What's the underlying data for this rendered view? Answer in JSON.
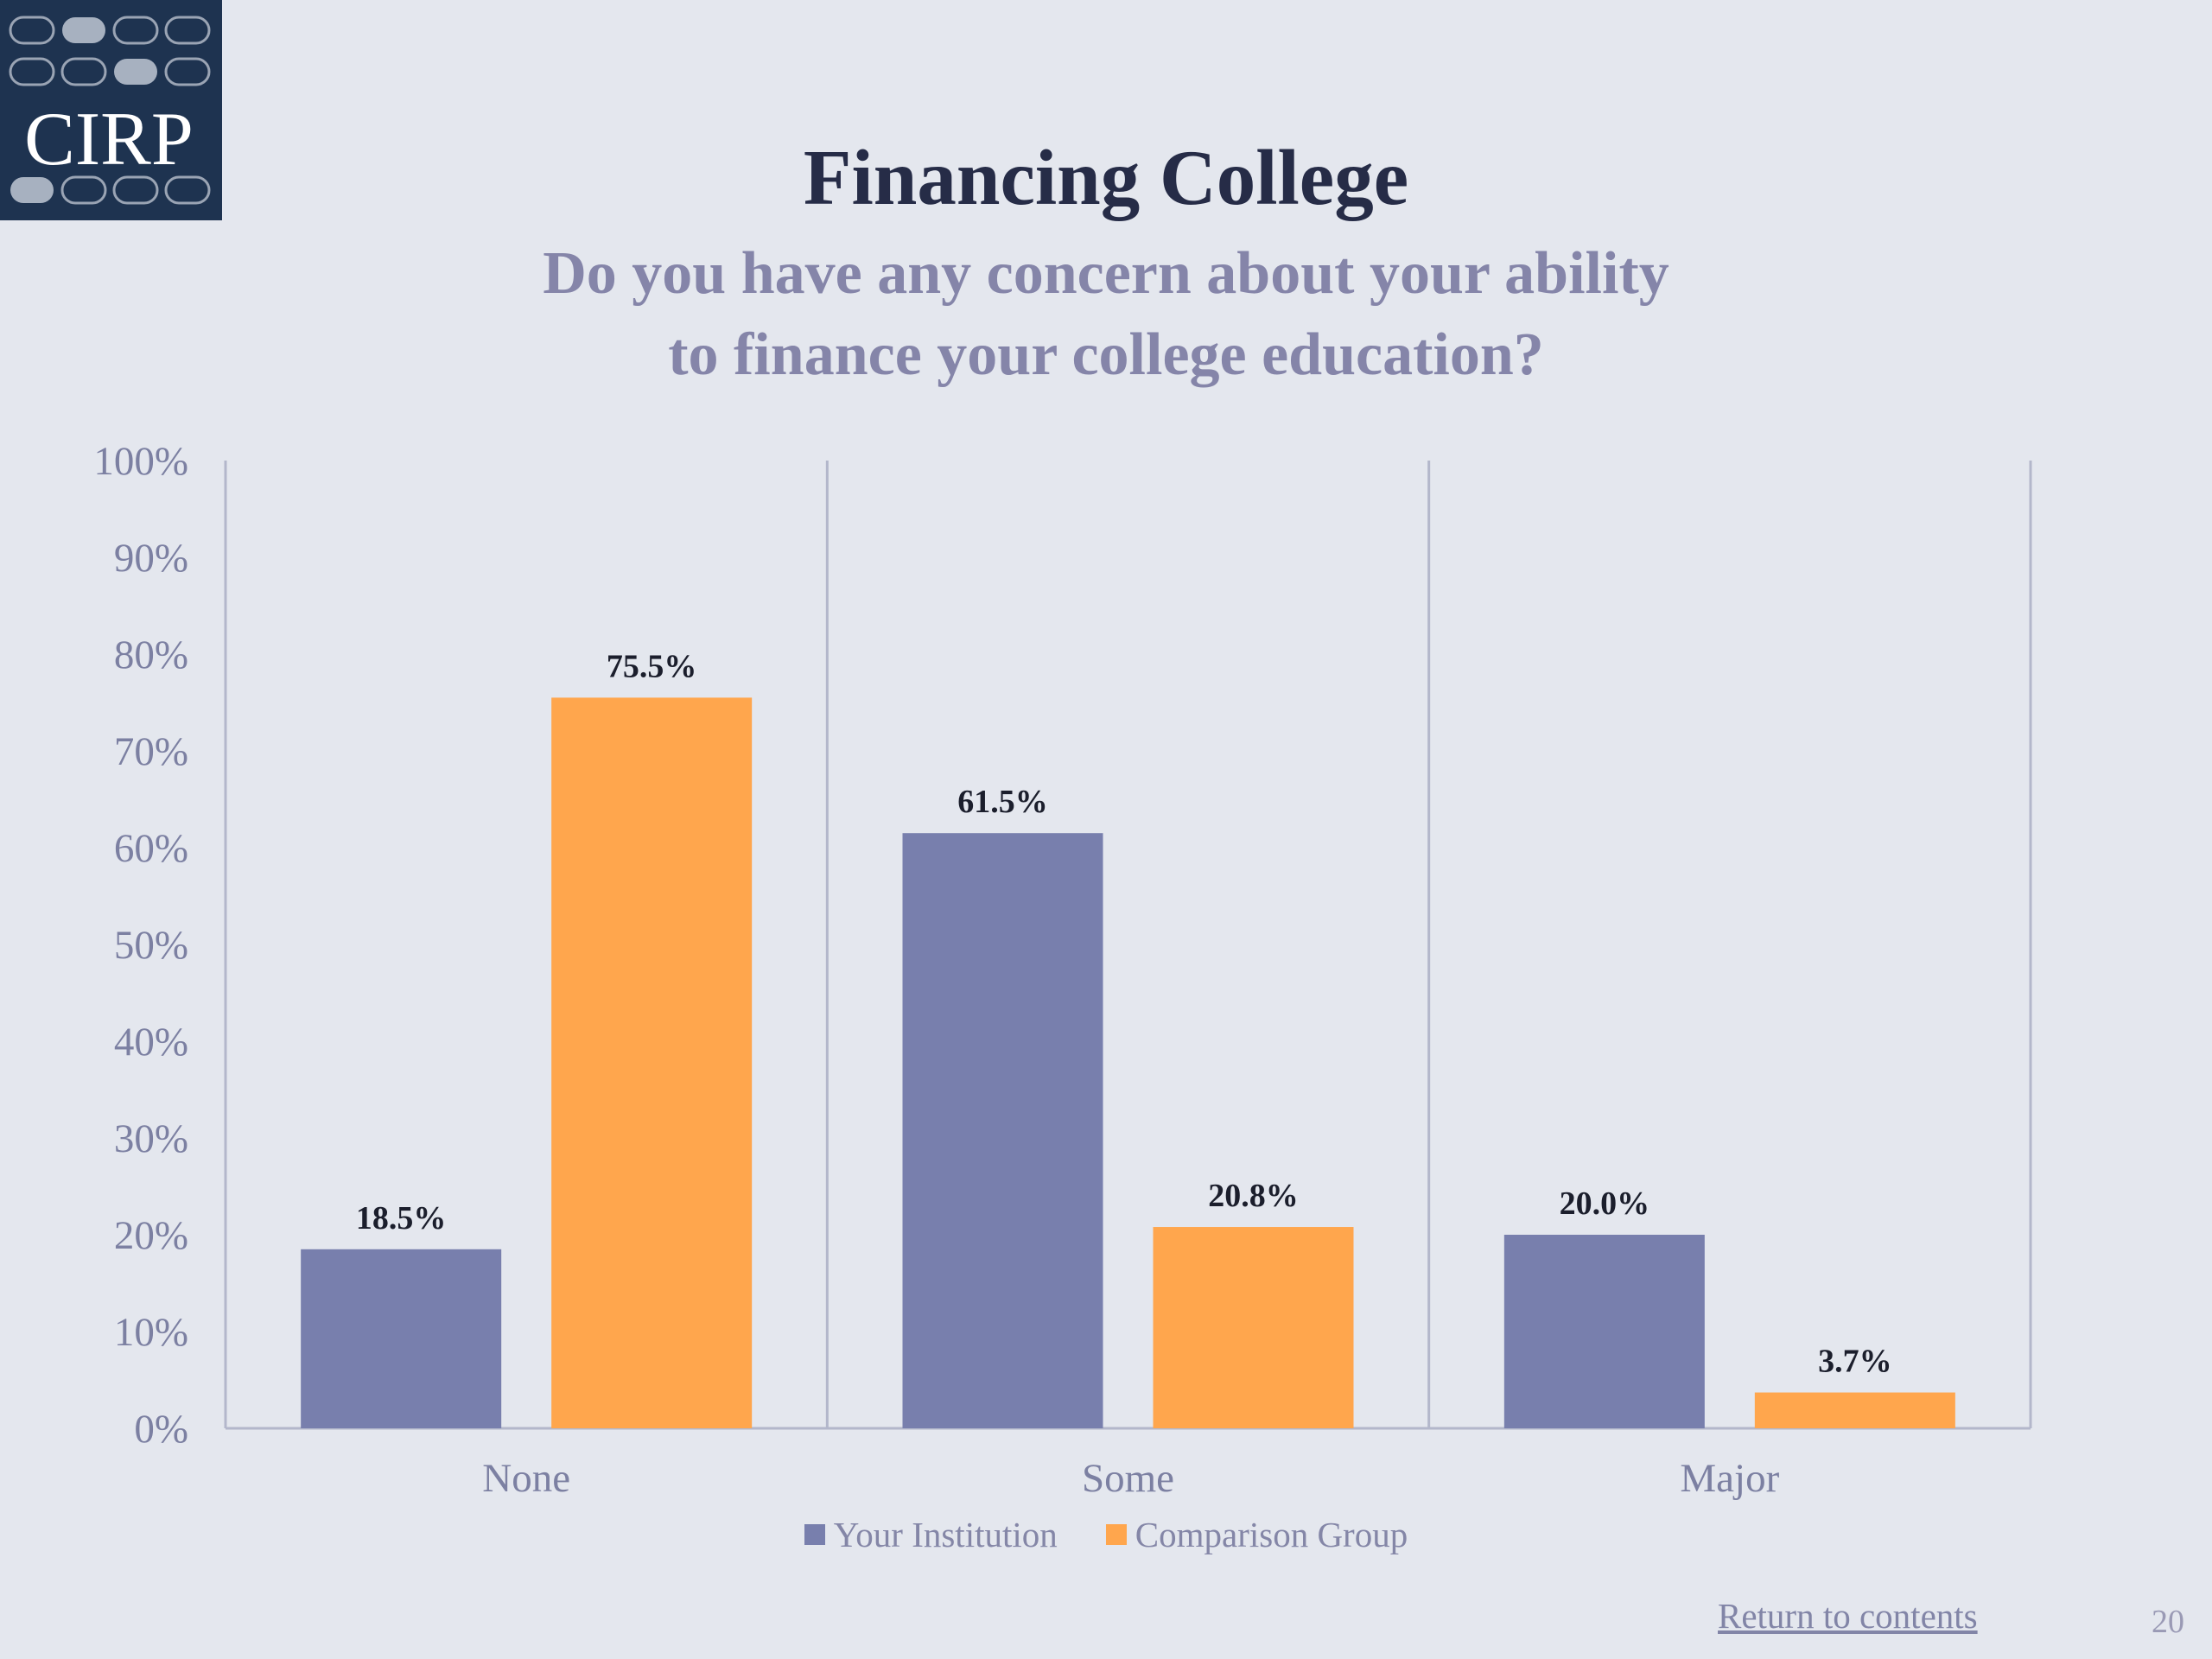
{
  "logo": {
    "text": "CIRP"
  },
  "slide": {
    "title": "Financing College",
    "subtitle_line1": "Do you have any concern about your ability",
    "subtitle_line2": "to finance your college education?",
    "return_link": "Return to contents",
    "page_number": "20"
  },
  "colors": {
    "background": "#e4e7ee",
    "logo_bg": "#1e3350",
    "your_institution": "#787fad",
    "comparison_group": "#ffa64d",
    "title": "#262c47",
    "subtitle": "#8585a9"
  },
  "chart_data": {
    "type": "bar",
    "categories": [
      "None",
      "Some",
      "Major"
    ],
    "series": [
      {
        "name": "Your Institution",
        "values": [
          18.5,
          61.5,
          20.0
        ],
        "labels": [
          "18.5%",
          "61.5%",
          "20.0%"
        ]
      },
      {
        "name": "Comparison Group",
        "values": [
          75.5,
          20.8,
          3.7
        ],
        "labels": [
          "75.5%",
          "20.8%",
          "3.7%"
        ]
      }
    ],
    "ylim": [
      0,
      100
    ],
    "yticks": [
      "0%",
      "10%",
      "20%",
      "30%",
      "40%",
      "50%",
      "60%",
      "70%",
      "80%",
      "90%",
      "100%"
    ],
    "grid": "vertical category separators",
    "legend": "bottom"
  }
}
